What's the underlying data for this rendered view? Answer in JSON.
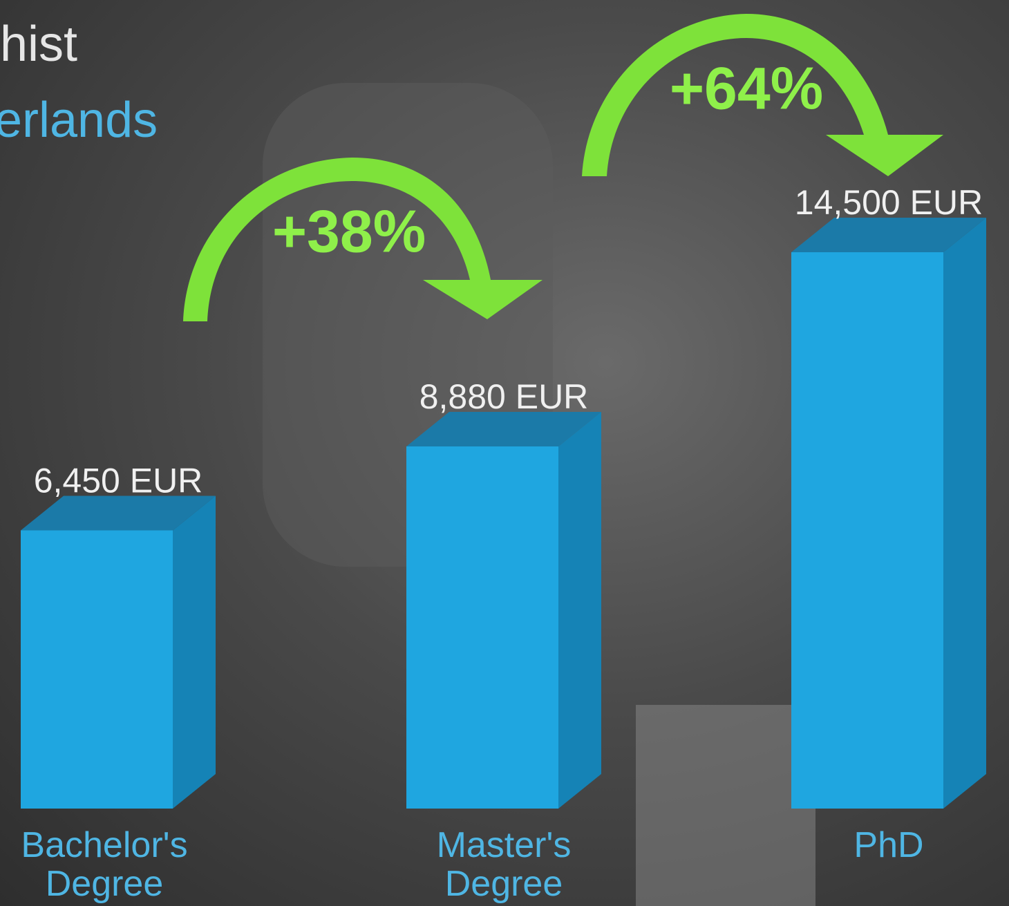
{
  "chart_data": {
    "type": "bar",
    "title": "hist",
    "subtitle": "erlands",
    "categories": [
      "Bachelor's Degree",
      "Master's Degree",
      "PhD"
    ],
    "values": [
      6450,
      8880,
      14500
    ],
    "value_labels": [
      "6,450 EUR",
      "8,880 EUR",
      "14,500 EUR"
    ],
    "annotations": [
      "+38%",
      "+64%"
    ],
    "color": "#1fa6e0"
  }
}
